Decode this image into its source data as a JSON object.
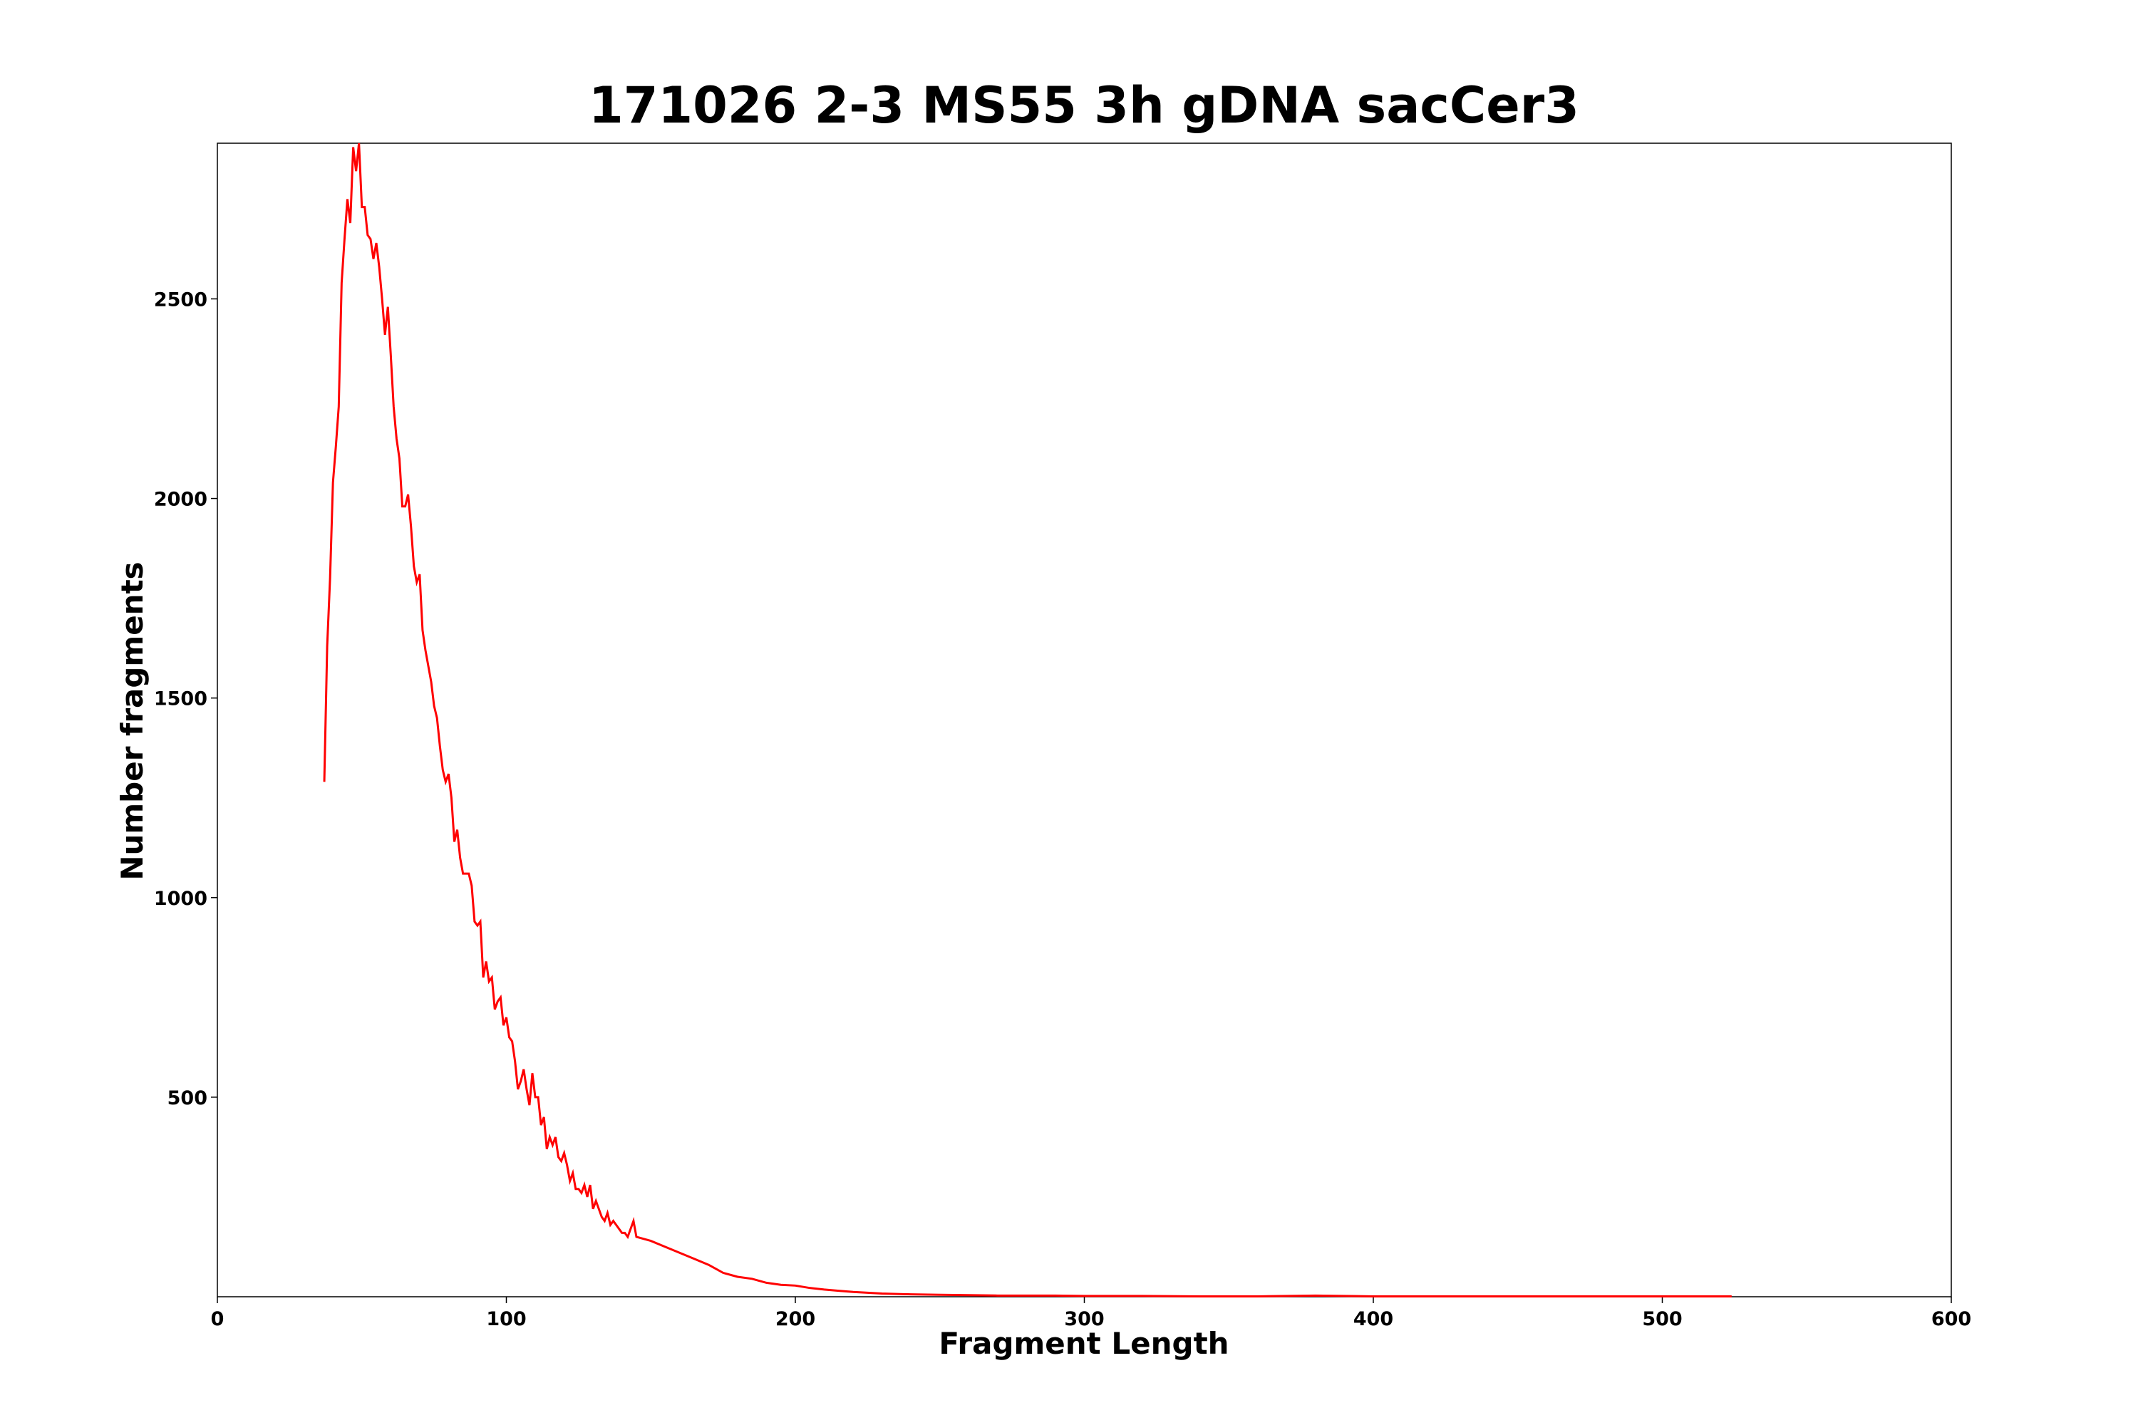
{
  "chart_data": {
    "type": "line",
    "title": "171026 2-3 MS55 3h gDNA sacCer3",
    "x_label": "Fragment Length",
    "y_label": "Number fragments",
    "xlim": [
      0,
      600
    ],
    "xticks": [
      0,
      100,
      200,
      300,
      400,
      500,
      600
    ],
    "ylim": [
      0,
      2890
    ],
    "yticks": [
      500,
      1000,
      1500,
      2000,
      2500
    ],
    "grid": false,
    "series": [
      {
        "color": "#ff0000",
        "x": [
          37,
          38,
          39,
          40,
          41,
          42,
          43,
          44,
          45,
          46,
          47,
          48,
          49,
          50,
          51,
          52,
          53,
          54,
          55,
          56,
          57,
          58,
          59,
          60,
          61,
          62,
          63,
          64,
          65,
          66,
          67,
          68,
          69,
          70,
          71,
          72,
          73,
          74,
          75,
          76,
          77,
          78,
          79,
          80,
          81,
          82,
          83,
          84,
          85,
          86,
          87,
          88,
          89,
          90,
          91,
          92,
          93,
          94,
          95,
          96,
          97,
          98,
          99,
          100,
          101,
          102,
          103,
          104,
          105,
          106,
          107,
          108,
          109,
          110,
          111,
          112,
          113,
          114,
          115,
          116,
          117,
          118,
          119,
          120,
          121,
          122,
          123,
          124,
          125,
          126,
          127,
          128,
          129,
          130,
          131,
          132,
          133,
          134,
          135,
          136,
          137,
          138,
          139,
          140,
          141,
          142,
          143,
          144,
          145,
          150,
          155,
          160,
          165,
          170,
          175,
          180,
          185,
          190,
          195,
          200,
          205,
          210,
          215,
          220,
          225,
          230,
          240,
          250,
          260,
          270,
          280,
          290,
          300,
          320,
          340,
          360,
          380,
          400,
          450,
          500,
          524
        ],
        "values": [
          1290,
          1630,
          1800,
          2040,
          2130,
          2230,
          2540,
          2650,
          2750,
          2690,
          2880,
          2820,
          2890,
          2730,
          2730,
          2660,
          2650,
          2600,
          2640,
          2580,
          2500,
          2410,
          2480,
          2360,
          2230,
          2150,
          2100,
          1980,
          1980,
          2010,
          1930,
          1830,
          1790,
          1810,
          1670,
          1620,
          1580,
          1540,
          1480,
          1450,
          1380,
          1320,
          1290,
          1310,
          1250,
          1140,
          1170,
          1100,
          1060,
          1060,
          1060,
          1030,
          940,
          930,
          940,
          800,
          840,
          790,
          800,
          720,
          740,
          750,
          680,
          700,
          650,
          640,
          590,
          520,
          540,
          570,
          520,
          480,
          560,
          500,
          500,
          430,
          450,
          370,
          400,
          380,
          400,
          350,
          340,
          360,
          330,
          290,
          310,
          270,
          270,
          260,
          280,
          250,
          280,
          220,
          240,
          220,
          200,
          190,
          210,
          180,
          190,
          180,
          170,
          160,
          160,
          150,
          170,
          190,
          150,
          140,
          125,
          110,
          95,
          80,
          60,
          50,
          45,
          35,
          30,
          28,
          22,
          18,
          15,
          12,
          10,
          8,
          6,
          5,
          4,
          3,
          3,
          3,
          2,
          2,
          1,
          1,
          3,
          1,
          1,
          1,
          1
        ]
      }
    ]
  }
}
